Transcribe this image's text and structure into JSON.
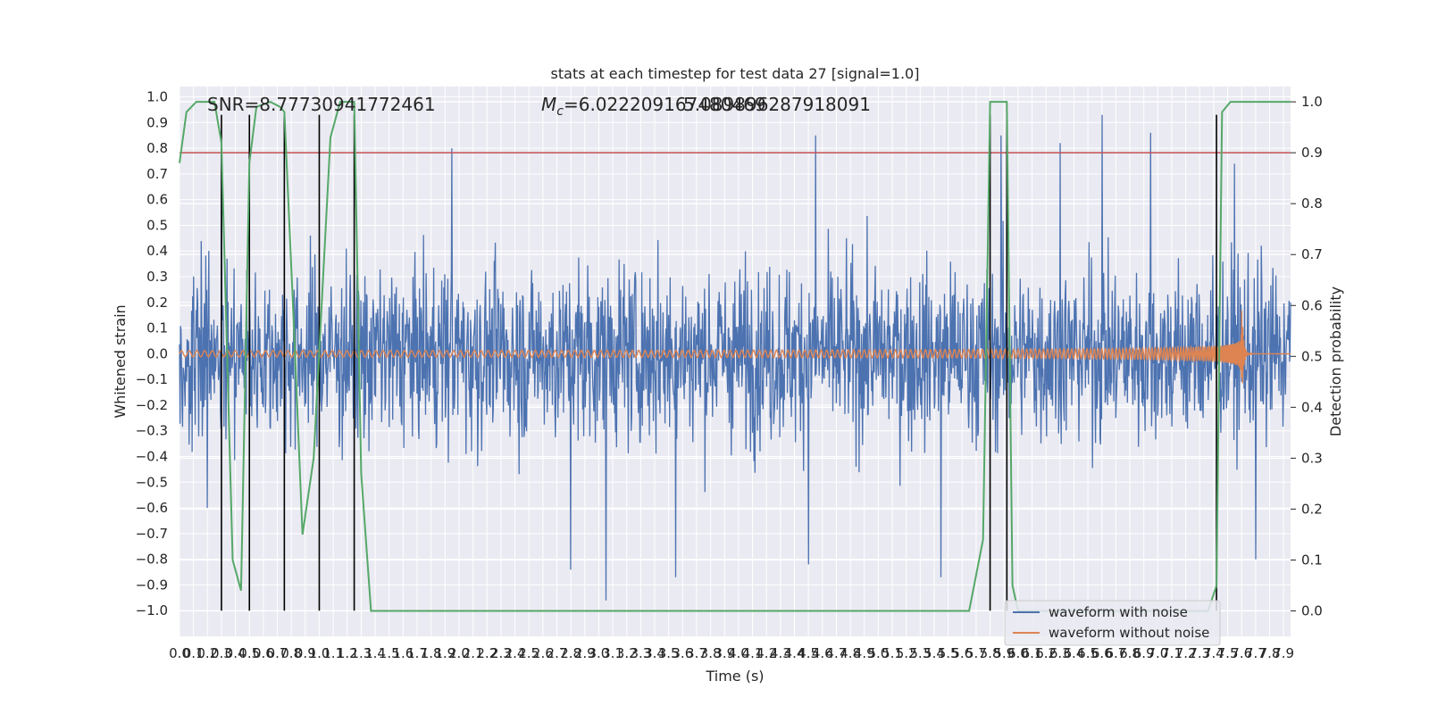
{
  "chart_data": {
    "type": "line",
    "title": "stats at each timestep for test data 27 [signal=1.0]",
    "xlabel": "Time (s)",
    "ylabel": "Whitened strain",
    "ylabel_right": "Detection probability",
    "xlim": [
      0.0,
      7.95
    ],
    "ylim": [
      -1.1,
      1.04
    ],
    "ylim_right": [
      -0.05,
      1.03
    ],
    "x_ticks": [
      "0.0",
      "0.1",
      "0.2",
      "0.3",
      "0.4",
      "0.5",
      "0.6",
      "0.7",
      "0.8",
      "0.9",
      "1.0",
      "1.1",
      "1.2",
      "1.3",
      "1.4",
      "1.5",
      "1.6",
      "1.7",
      "1.8",
      "1.9",
      "2.0",
      "2.1",
      "2.2",
      "2.3",
      "2.4",
      "2.5",
      "2.6",
      "2.7",
      "2.8",
      "2.9",
      "3.0",
      "3.1",
      "3.2",
      "3.3",
      "3.4",
      "3.5",
      "3.6",
      "3.7",
      "3.8",
      "3.9",
      "4.0",
      "4.1",
      "4.2",
      "4.3",
      "4.4",
      "4.5",
      "4.6",
      "4.7",
      "4.8",
      "4.9",
      "5.0",
      "5.1",
      "5.2",
      "5.3",
      "5.4",
      "5.5",
      "5.6",
      "5.7",
      "5.8",
      "5.9",
      "6.0",
      "6.1",
      "6.2",
      "6.3",
      "6.4",
      "6.5",
      "6.6",
      "6.7",
      "6.8",
      "6.9",
      "7.0",
      "7.1",
      "7.2",
      "7.3",
      "7.4",
      "7.5",
      "7.6",
      "7.7",
      "7.8",
      "7.9"
    ],
    "y_ticks": [
      "1.0",
      "0.9",
      "0.8",
      "0.7",
      "0.6",
      "0.5",
      "0.4",
      "0.3",
      "0.2",
      "0.1",
      "0.0",
      "−0.1",
      "−0.2",
      "−0.3",
      "−0.4",
      "−0.5",
      "−0.6",
      "−0.7",
      "−0.8",
      "−0.9",
      "−1.0"
    ],
    "y_right_ticks": [
      "1.0",
      "0.9",
      "0.8",
      "0.7",
      "0.6",
      "0.5",
      "0.4",
      "0.3",
      "0.2",
      "0.1",
      "0.0"
    ],
    "annotations": {
      "snr": "SNR=8.77730941772461",
      "mc_symbol": "M",
      "mc_subscript": "c",
      "mc_value": "=6.022209167480469",
      "overlap_value": "5.089896287918091"
    },
    "threshold": {
      "value": 0.9,
      "axis": "right",
      "color": "#c44e52"
    },
    "detection_markers_x": [
      0.3,
      0.5,
      0.75,
      1.0,
      1.25,
      5.8,
      5.92,
      7.42
    ],
    "detection_marker_range": [
      -1.0,
      0.93
    ],
    "series": [
      {
        "name": "waveform with noise",
        "color": "#4c72b0",
        "noise_sigma": 0.17,
        "x_range": [
          0.0,
          7.95
        ],
        "spikes": [
          {
            "x": 0.3,
            "y": 0.78
          },
          {
            "x": 1.95,
            "y": 0.8
          },
          {
            "x": 2.8,
            "y": -0.84
          },
          {
            "x": 3.05,
            "y": -0.96
          },
          {
            "x": 3.55,
            "y": -0.87
          },
          {
            "x": 4.5,
            "y": -0.82
          },
          {
            "x": 5.45,
            "y": -0.87
          },
          {
            "x": 5.88,
            "y": 0.85
          },
          {
            "x": 6.6,
            "y": 0.93
          },
          {
            "x": 6.95,
            "y": 0.86
          },
          {
            "x": 7.7,
            "y": -0.8
          },
          {
            "x": 7.55,
            "y": 0.74
          },
          {
            "x": 0.2,
            "y": -0.6
          },
          {
            "x": 4.55,
            "y": 0.85
          },
          {
            "x": 6.3,
            "y": 0.82
          }
        ]
      },
      {
        "name": "waveform without noise",
        "color": "#dd8452",
        "chirp": {
          "start": 0.0,
          "merger": 7.6,
          "end": 7.95,
          "amp_start": 0.012,
          "amp_merger": 0.21,
          "f_start": 18,
          "f_merger": 260
        }
      },
      {
        "name": "detection probability",
        "color": "#55a868",
        "axis": "right",
        "x": [
          0.0,
          0.05,
          0.12,
          0.25,
          0.3,
          0.38,
          0.44,
          0.5,
          0.55,
          0.65,
          0.72,
          0.75,
          0.82,
          0.88,
          0.96,
          1.03,
          1.08,
          1.15,
          1.25,
          1.3,
          1.37,
          5.65,
          5.75,
          5.8,
          5.84,
          5.92,
          5.96,
          6.0,
          7.36,
          7.42,
          7.46,
          7.52,
          7.95
        ],
        "y": [
          0.88,
          0.98,
          1.0,
          1.0,
          0.92,
          0.1,
          0.04,
          0.88,
          0.99,
          1.0,
          0.99,
          0.98,
          0.55,
          0.15,
          0.3,
          0.67,
          0.93,
          1.0,
          1.0,
          0.27,
          0.0,
          0.0,
          0.14,
          1.0,
          1.0,
          1.0,
          0.05,
          0.0,
          0.0,
          0.05,
          0.98,
          1.0,
          1.0
        ]
      }
    ],
    "legend": {
      "placement": "bottom-right",
      "entries": [
        {
          "label": "waveform with noise",
          "color": "#4c72b0"
        },
        {
          "label": "waveform without noise",
          "color": "#dd8452"
        }
      ]
    }
  }
}
